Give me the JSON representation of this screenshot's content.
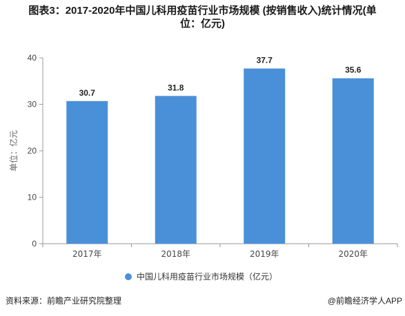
{
  "title_line1": "图表3：2017-2020年中国儿科用疫苗行业市场规模 (按销售收入)统计情况(单",
  "title_line2": "位：亿元)",
  "source": "资料来源：前瞻产业研究院整理",
  "credit": "@前瞻经济学人APP",
  "colors": {
    "bar": "#4a90d9",
    "axis": "#999999",
    "grid": "#d9d9d9",
    "text": "#444444"
  },
  "chart_data": {
    "type": "bar",
    "categories": [
      "2017年",
      "2018年",
      "2019年",
      "2020年"
    ],
    "series": [
      {
        "name": "中国儿科用疫苗行业市场规模（亿元）",
        "values": [
          30.7,
          31.8,
          37.7,
          35.6
        ]
      }
    ],
    "ylabel": "单位：亿元",
    "ylim": [
      0,
      40
    ],
    "yticks": [
      0,
      10,
      20,
      30,
      40
    ],
    "grid": false,
    "legend": "bottom"
  }
}
